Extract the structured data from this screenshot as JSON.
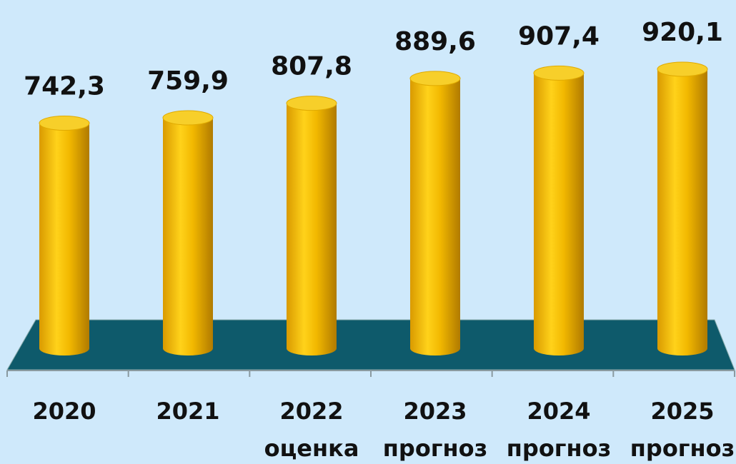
{
  "chart_data": {
    "type": "bar3d",
    "categories": [
      "2020",
      "2021",
      "2022",
      "2023",
      "2024",
      "2025"
    ],
    "sublabels": [
      null,
      null,
      "оценка",
      "прогноз",
      "прогноз",
      "прогноз"
    ],
    "values": [
      742.3,
      759.9,
      807.8,
      889.6,
      907.4,
      920.1
    ],
    "value_labels": [
      "742,3",
      "759,9",
      "807,8",
      "889,6",
      "907,4",
      "920,1"
    ],
    "color": "#f5c000",
    "floor_color": "#0e5a6b"
  }
}
